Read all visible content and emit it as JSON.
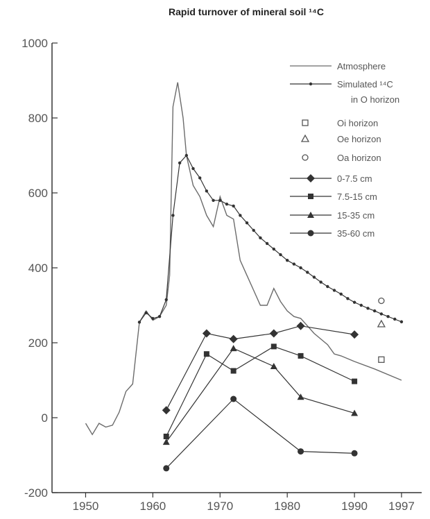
{
  "chart_data": {
    "type": "line",
    "title": "Rapid turnover of mineral soil ¹⁴C",
    "xlabel": "",
    "ylabel": "",
    "xlim": [
      1945,
      2000
    ],
    "ylim": [
      -200,
      1000
    ],
    "x_ticks": [
      1950,
      1960,
      1970,
      1980,
      1990,
      1997
    ],
    "y_ticks": [
      -200,
      0,
      200,
      400,
      600,
      800,
      1000
    ],
    "grid": false,
    "legend_position": "top-right",
    "legend": [
      {
        "label": "Atmosphere",
        "symbol": "line"
      },
      {
        "label": "Simulated ¹⁴C",
        "label2": "in O horizon",
        "symbol": "line-dot"
      },
      {
        "label": "Oi horizon",
        "symbol": "open-square"
      },
      {
        "label": "Oe horizon",
        "symbol": "open-triangle"
      },
      {
        "label": "Oa horizon",
        "symbol": "open-circle"
      },
      {
        "label": "0-7.5 cm",
        "symbol": "line-diamond"
      },
      {
        "label": "7.5-15 cm",
        "symbol": "line-square"
      },
      {
        "label": "15-35 cm",
        "symbol": "line-triangle"
      },
      {
        "label": "35-60 cm",
        "symbol": "line-circle"
      }
    ],
    "series": [
      {
        "name": "Atmosphere",
        "style": "line",
        "color": "#6b6b6b",
        "points": [
          [
            1950,
            -15
          ],
          [
            1951,
            -45
          ],
          [
            1952,
            -15
          ],
          [
            1953,
            -25
          ],
          [
            1954,
            -20
          ],
          [
            1955,
            15
          ],
          [
            1956,
            70
          ],
          [
            1957,
            90
          ],
          [
            1958,
            255
          ],
          [
            1959,
            285
          ],
          [
            1960,
            260
          ],
          [
            1961,
            270
          ],
          [
            1962,
            300
          ],
          [
            1962.5,
            380
          ],
          [
            1963,
            830
          ],
          [
            1963.7,
            895
          ],
          [
            1964.5,
            800
          ],
          [
            1965,
            700
          ],
          [
            1966,
            620
          ],
          [
            1967,
            590
          ],
          [
            1968,
            540
          ],
          [
            1969,
            510
          ],
          [
            1970,
            590
          ],
          [
            1971,
            540
          ],
          [
            1972,
            530
          ],
          [
            1973,
            420
          ],
          [
            1974,
            380
          ],
          [
            1975,
            340
          ],
          [
            1976,
            300
          ],
          [
            1977,
            300
          ],
          [
            1978,
            345
          ],
          [
            1979,
            310
          ],
          [
            1980,
            285
          ],
          [
            1981,
            270
          ],
          [
            1982,
            265
          ],
          [
            1983,
            245
          ],
          [
            1984,
            225
          ],
          [
            1985,
            210
          ],
          [
            1986,
            195
          ],
          [
            1987,
            170
          ],
          [
            1988,
            165
          ],
          [
            1990,
            150
          ],
          [
            1993,
            130
          ],
          [
            1997,
            100
          ]
        ]
      },
      {
        "name": "Simulated ¹⁴C in O horizon",
        "style": "line-dot",
        "color": "#333333",
        "points": [
          [
            1958,
            255
          ],
          [
            1959,
            280
          ],
          [
            1960,
            265
          ],
          [
            1961,
            270
          ],
          [
            1962,
            315
          ],
          [
            1963,
            540
          ],
          [
            1964,
            680
          ],
          [
            1965,
            700
          ],
          [
            1966,
            665
          ],
          [
            1967,
            640
          ],
          [
            1968,
            605
          ],
          [
            1969,
            580
          ],
          [
            1970,
            580
          ],
          [
            1971,
            570
          ],
          [
            1972,
            565
          ],
          [
            1973,
            540
          ],
          [
            1974,
            520
          ],
          [
            1975,
            500
          ],
          [
            1976,
            480
          ],
          [
            1977,
            465
          ],
          [
            1978,
            450
          ],
          [
            1979,
            435
          ],
          [
            1980,
            420
          ],
          [
            1981,
            410
          ],
          [
            1982,
            400
          ],
          [
            1983,
            388
          ],
          [
            1984,
            375
          ],
          [
            1985,
            362
          ],
          [
            1986,
            350
          ],
          [
            1987,
            340
          ],
          [
            1988,
            330
          ],
          [
            1989,
            318
          ],
          [
            1990,
            308
          ],
          [
            1991,
            300
          ],
          [
            1992,
            292
          ],
          [
            1993,
            285
          ],
          [
            1994,
            277
          ],
          [
            1995,
            270
          ],
          [
            1996,
            263
          ],
          [
            1997,
            256
          ]
        ]
      },
      {
        "name": "Oi horizon",
        "style": "open-square",
        "color": "#555555",
        "points": [
          [
            1994,
            155
          ]
        ]
      },
      {
        "name": "Oe horizon",
        "style": "open-triangle",
        "color": "#555555",
        "points": [
          [
            1994,
            250
          ]
        ]
      },
      {
        "name": "Oa horizon",
        "style": "open-circle",
        "color": "#555555",
        "points": [
          [
            1994,
            312
          ]
        ]
      },
      {
        "name": "0-7.5 cm",
        "style": "line-diamond",
        "color": "#333333",
        "points": [
          [
            1962,
            20
          ],
          [
            1968,
            225
          ],
          [
            1972,
            210
          ],
          [
            1978,
            225
          ],
          [
            1982,
            245
          ],
          [
            1990,
            222
          ]
        ]
      },
      {
        "name": "7.5-15 cm",
        "style": "line-square",
        "color": "#333333",
        "points": [
          [
            1962,
            -50
          ],
          [
            1968,
            170
          ],
          [
            1972,
            125
          ],
          [
            1978,
            190
          ],
          [
            1982,
            165
          ],
          [
            1990,
            97
          ]
        ]
      },
      {
        "name": "15-35 cm",
        "style": "line-triangle",
        "color": "#333333",
        "points": [
          [
            1962,
            -65
          ],
          [
            1972,
            185
          ],
          [
            1978,
            137
          ],
          [
            1982,
            55
          ],
          [
            1990,
            12
          ]
        ]
      },
      {
        "name": "35-60 cm",
        "style": "line-circle",
        "color": "#333333",
        "points": [
          [
            1962,
            -135
          ],
          [
            1972,
            50
          ],
          [
            1982,
            -90
          ],
          [
            1990,
            -95
          ]
        ]
      }
    ]
  }
}
